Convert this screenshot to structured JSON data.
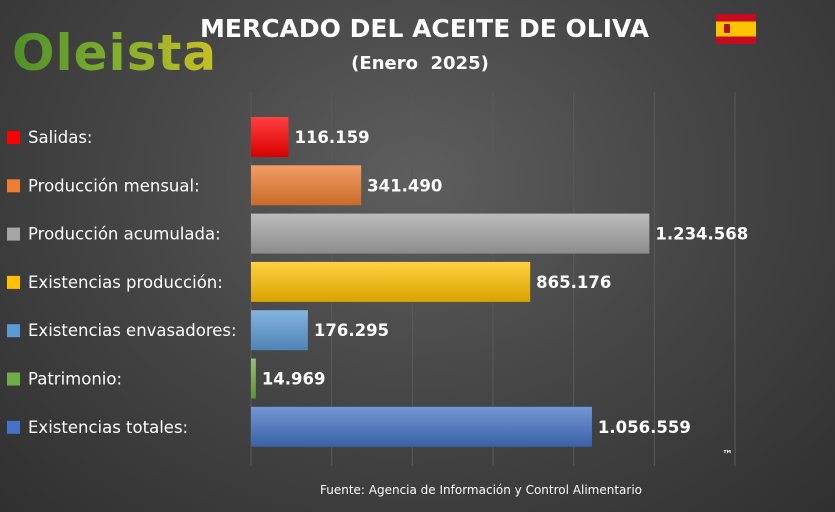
{
  "brand": {
    "logo_text": "Oleista",
    "flag_icon": "spain-flag-icon"
  },
  "source": "Fuente: Agencia de Información y Control Alimentario",
  "trademark": "™",
  "chart_data": {
    "type": "bar",
    "orientation": "horizontal",
    "title": "MERCADO DEL ACEITE DE OLIVA",
    "subtitle": "(Enero  2025)",
    "xlim": [
      0,
      1500000
    ],
    "grid": true,
    "categories": [
      "Salidas:",
      "Producción mensual:",
      "Producción acumulada:",
      "Existencias producción:",
      "Existencias envasadores:",
      "Patrimonio:",
      "Existencias totales:"
    ],
    "values": [
      116159,
      341490,
      1234568,
      865176,
      176295,
      14969,
      1056559
    ],
    "data_labels": [
      "116.159",
      "341.490",
      "1.234.568",
      "865.176",
      "176.295",
      "14.969",
      "1.056.559"
    ],
    "colors": [
      "#ff0000",
      "#ed7d31",
      "#a5a5a5",
      "#ffc000",
      "#5b9bd5",
      "#70ad47",
      "#4472c4"
    ]
  }
}
